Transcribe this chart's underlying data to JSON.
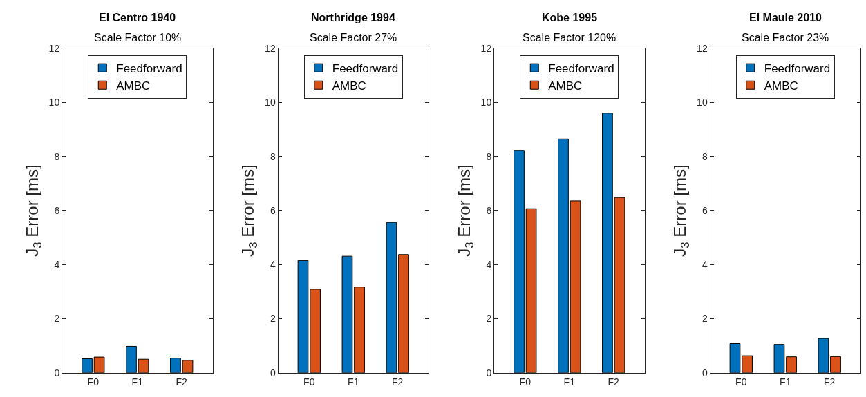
{
  "chart_data": [
    {
      "type": "bar",
      "title": "El Centro 1940",
      "subtitle": "Scale Factor 10%",
      "ylabel": "J$_{3}$ Error [ms]",
      "categories": [
        "F0",
        "F1",
        "F2"
      ],
      "ylim": [
        0,
        12
      ],
      "yticks": [
        0,
        2,
        4,
        6,
        8,
        10,
        12
      ],
      "legend": "top",
      "series": [
        {
          "name": "Feedforward",
          "color": "#0072bd",
          "values": [
            0.52,
            0.98,
            0.54
          ]
        },
        {
          "name": "AMBC",
          "color": "#d95319",
          "values": [
            0.58,
            0.5,
            0.46
          ]
        }
      ]
    },
    {
      "type": "bar",
      "title": "Northridge 1994",
      "subtitle": "Scale Factor 27%",
      "ylabel": "J$_{3}$ Error [ms]",
      "categories": [
        "F0",
        "F1",
        "F2"
      ],
      "ylim": [
        0,
        12
      ],
      "yticks": [
        0,
        2,
        4,
        6,
        8,
        10,
        12
      ],
      "legend": "top",
      "series": [
        {
          "name": "Feedforward",
          "color": "#0072bd",
          "values": [
            4.15,
            4.31,
            5.56
          ]
        },
        {
          "name": "AMBC",
          "color": "#d95319",
          "values": [
            3.09,
            3.17,
            4.37
          ]
        }
      ]
    },
    {
      "type": "bar",
      "title": "Kobe 1995",
      "subtitle": "Scale Factor 120%",
      "ylabel": "J$_{3}$ Error [ms]",
      "categories": [
        "F0",
        "F1",
        "F2"
      ],
      "ylim": [
        0,
        12
      ],
      "yticks": [
        0,
        2,
        4,
        6,
        8,
        10,
        12
      ],
      "legend": "top",
      "series": [
        {
          "name": "Feedforward",
          "color": "#0072bd",
          "values": [
            8.23,
            8.65,
            9.61
          ]
        },
        {
          "name": "AMBC",
          "color": "#d95319",
          "values": [
            6.07,
            6.36,
            6.48
          ]
        }
      ]
    },
    {
      "type": "bar",
      "title": "El Maule 2010",
      "subtitle": "Scale Factor 23%",
      "ylabel": "J$_{3}$ Error [ms]",
      "categories": [
        "F0",
        "F1",
        "F2"
      ],
      "ylim": [
        0,
        12
      ],
      "yticks": [
        0,
        2,
        4,
        6,
        8,
        10,
        12
      ],
      "legend": "top",
      "series": [
        {
          "name": "Feedforward",
          "color": "#0072bd",
          "values": [
            1.08,
            1.05,
            1.27
          ]
        },
        {
          "name": "AMBC",
          "color": "#d95319",
          "values": [
            0.63,
            0.59,
            0.6
          ]
        }
      ]
    }
  ]
}
